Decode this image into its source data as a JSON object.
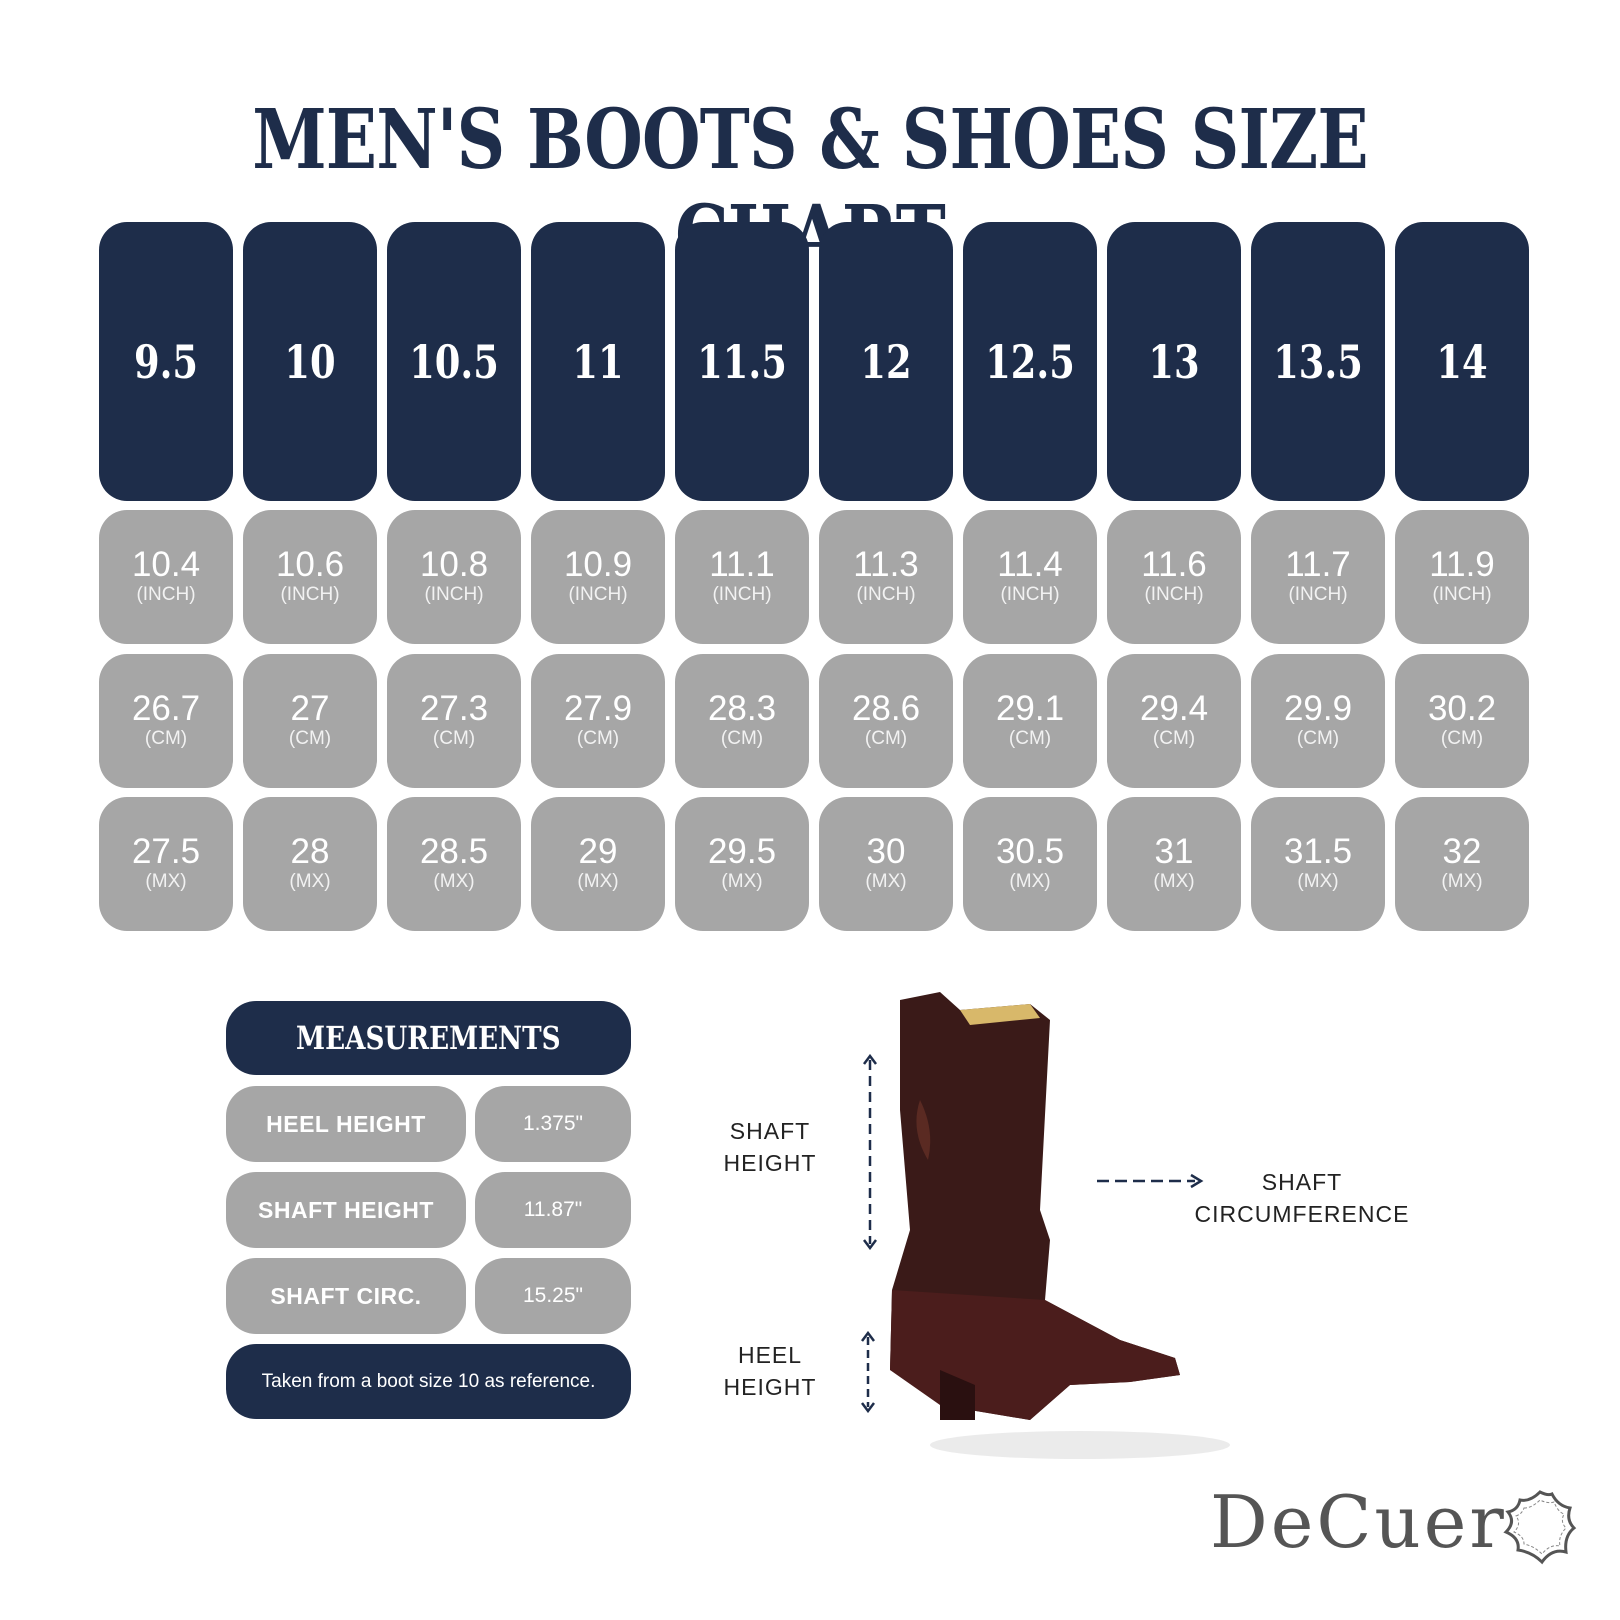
{
  "title": "MEN'S BOOTS & SHOES SIZE CHART",
  "sizes": [
    {
      "us": "9.5",
      "inch": "10.4",
      "cm": "26.7",
      "mx": "27.5"
    },
    {
      "us": "10",
      "inch": "10.6",
      "cm": "27",
      "mx": "28"
    },
    {
      "us": "10.5",
      "inch": "10.8",
      "cm": "27.3",
      "mx": "28.5"
    },
    {
      "us": "11",
      "inch": "10.9",
      "cm": "27.9",
      "mx": "29"
    },
    {
      "us": "11.5",
      "inch": "11.1",
      "cm": "28.3",
      "mx": "29.5"
    },
    {
      "us": "12",
      "inch": "11.3",
      "cm": "28.6",
      "mx": "30"
    },
    {
      "us": "12.5",
      "inch": "11.4",
      "cm": "29.1",
      "mx": "30.5"
    },
    {
      "us": "13",
      "inch": "11.6",
      "cm": "29.4",
      "mx": "31"
    },
    {
      "us": "13.5",
      "inch": "11.7",
      "cm": "29.9",
      "mx": "31.5"
    },
    {
      "us": "14",
      "inch": "11.9",
      "cm": "30.2",
      "mx": "32"
    }
  ],
  "units": {
    "inch": "(INCH)",
    "cm": "(CM)",
    "mx": "(MX)"
  },
  "measurements": {
    "title": "MEASUREMENTS",
    "rows": [
      {
        "label": "HEEL HEIGHT",
        "value": "1.375\""
      },
      {
        "label": "SHAFT HEIGHT",
        "value": "11.87\""
      },
      {
        "label": "SHAFT CIRC.",
        "value": "15.25\""
      }
    ],
    "note": "Taken from a boot size 10 as reference."
  },
  "diagram": {
    "shaft_height": "SHAFT\nHEIGHT",
    "heel_height": "HEEL\nHEIGHT",
    "shaft_circumference": "SHAFT\nCIRCUMFERENCE"
  },
  "logo": {
    "text": "DeCuer"
  },
  "colors": {
    "navy": "#1e2d4a",
    "gray": "#a6a6a6"
  }
}
